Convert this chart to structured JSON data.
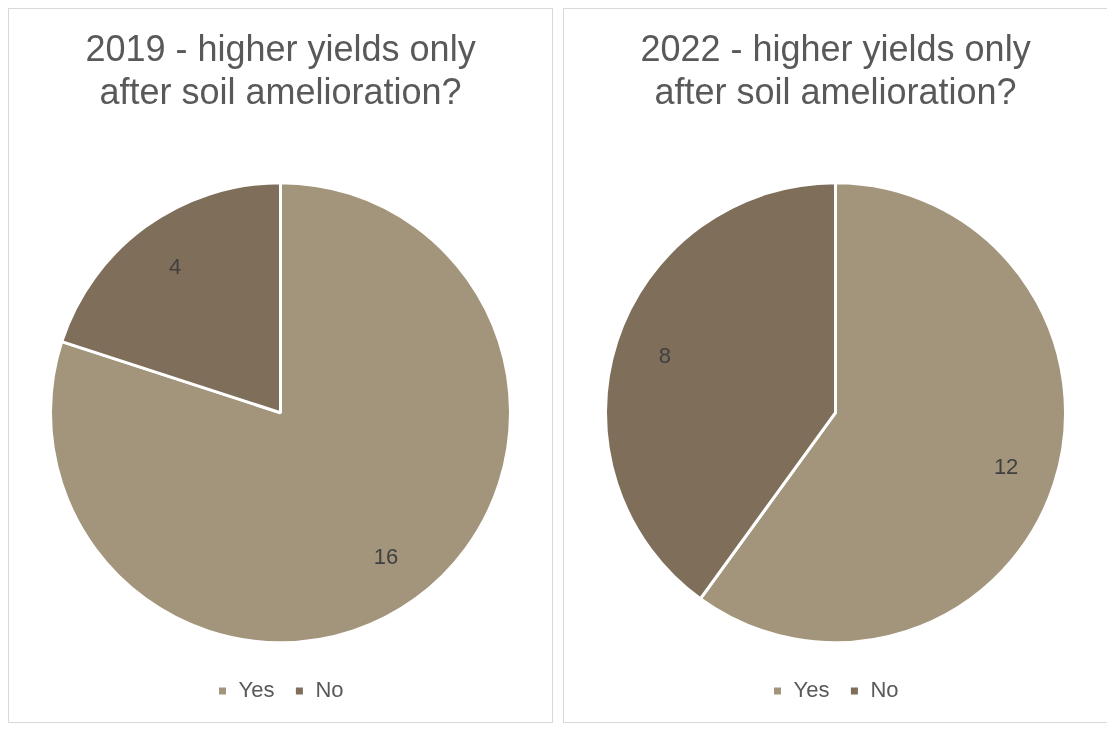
{
  "chart_data": [
    {
      "type": "pie",
      "title": "2019 - higher yields only after soil amelioration?",
      "categories": [
        "Yes",
        "No"
      ],
      "values": [
        16,
        4
      ],
      "colors": [
        "#a3947c",
        "#7f6f5a"
      ],
      "data_labels": true,
      "legend": "bottom"
    },
    {
      "type": "pie",
      "title": "2022 - higher yields only after soil amelioration?",
      "categories": [
        "Yes",
        "No"
      ],
      "values": [
        12,
        8
      ],
      "colors": [
        "#a3947c",
        "#7f6f5a"
      ],
      "data_labels": true,
      "legend": "bottom"
    }
  ]
}
